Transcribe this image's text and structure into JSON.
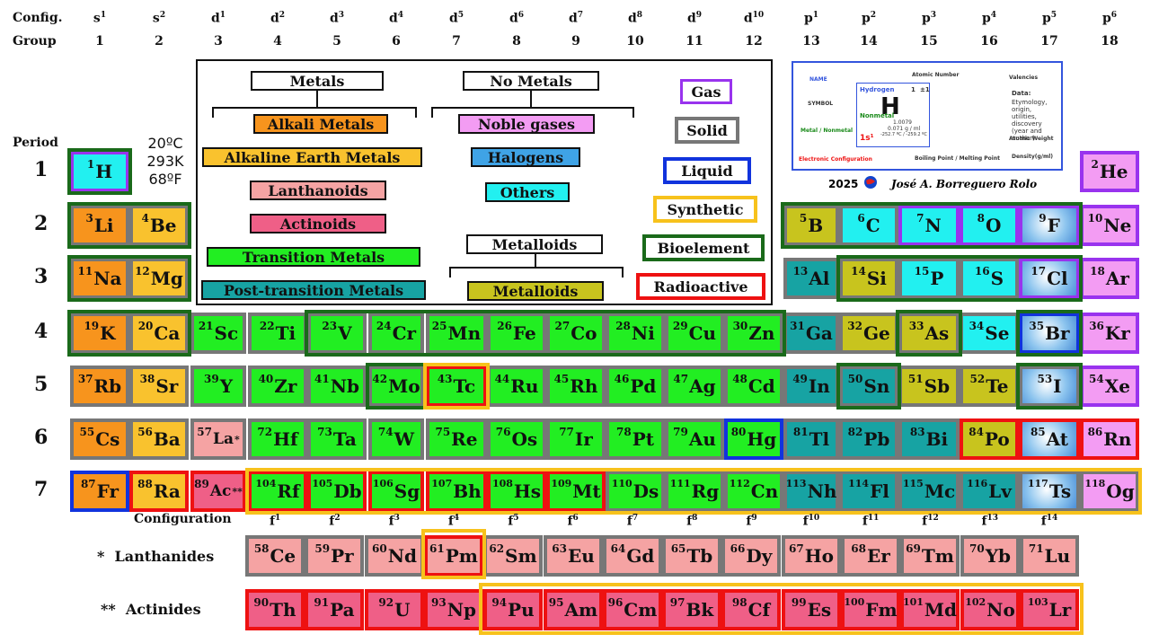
{
  "header": {
    "config_label": "Config.",
    "group_label": "Group",
    "columns": [
      {
        "config": "s",
        "sup": "1",
        "group": "1"
      },
      {
        "config": "s",
        "sup": "2",
        "group": "2"
      },
      {
        "config": "d",
        "sup": "1",
        "group": "3"
      },
      {
        "config": "d",
        "sup": "2",
        "group": "4"
      },
      {
        "config": "d",
        "sup": "3",
        "group": "5"
      },
      {
        "config": "d",
        "sup": "4",
        "group": "6"
      },
      {
        "config": "d",
        "sup": "5",
        "group": "7"
      },
      {
        "config": "d",
        "sup": "6",
        "group": "8"
      },
      {
        "config": "d",
        "sup": "7",
        "group": "9"
      },
      {
        "config": "d",
        "sup": "8",
        "group": "10"
      },
      {
        "config": "d",
        "sup": "9",
        "group": "11"
      },
      {
        "config": "d",
        "sup": "10",
        "group": "12"
      },
      {
        "config": "p",
        "sup": "1",
        "group": "13"
      },
      {
        "config": "p",
        "sup": "2",
        "group": "14"
      },
      {
        "config": "p",
        "sup": "3",
        "group": "15"
      },
      {
        "config": "p",
        "sup": "4",
        "group": "16"
      },
      {
        "config": "p",
        "sup": "5",
        "group": "17"
      },
      {
        "config": "p",
        "sup": "6",
        "group": "18"
      }
    ]
  },
  "period_label": "Period",
  "periods": [
    "1",
    "2",
    "3",
    "4",
    "5",
    "6",
    "7"
  ],
  "temperature": {
    "celsius": "20ºC",
    "kelvin": "293K",
    "fahrenheit": "68ºF"
  },
  "legend": {
    "metals_title": "Metals",
    "nonmetals_title": "No Metals",
    "metalloids_title": "Metalloids",
    "categories": {
      "alkali": "Alkali Metals",
      "earth": "Alkaline Earth Metals",
      "lanthanoids": "Lanthanoids",
      "actinoids": "Actinoids",
      "transition": "Transition Metals",
      "post": "Post-transition Metals",
      "noble": "Noble gases",
      "halogens": "Halogens",
      "others": "Others",
      "metalloids": "Metalloids"
    },
    "states": {
      "gas": "Gas",
      "solid": "Solid",
      "liquid": "Liquid",
      "synthetic": "Synthetic",
      "bioelement": "Bioelement",
      "radioactive": "Radioactive"
    },
    "colors": {
      "alkali": "#f7941d",
      "earth": "#f9c22e",
      "lanthanoids": "#f5a3a3",
      "actinoids": "#ef5f87",
      "transition": "#22ee22",
      "post": "#17a3a3",
      "noble": "#f39cf3",
      "halogens": "#4b8fd8",
      "others": "#22f0f0",
      "metalloids": "#c8c41e",
      "gas": "#9933ee",
      "solid": "#777777",
      "liquid": "#1133dd",
      "synthetic": "#f7c21c",
      "bioelement": "#1a6a1a",
      "radioactive": "#ee1111"
    }
  },
  "key_card": {
    "name_label": "NAME",
    "atomic_number_label": "Atomic Number",
    "valencies_label": "Valencies",
    "symbol_label": "SYMBOL",
    "element_name": "Hydrogen",
    "number": "1",
    "valency": "±1",
    "symbol": "H",
    "metal_label": "Metal / Nonmetal",
    "nonmetal": "Nonmetal",
    "data_label": "Data:",
    "data_text": "Etymology, origin, utilities, discovery (year and author)",
    "weight": "1.0079",
    "density": "0.071 g / ml",
    "temps": "-252.7 ºC / -259.2 ºC",
    "atomic_weight_label": "Atomic Weight",
    "config_value": "1s¹",
    "electronic_config_label": "Electronic Configuration",
    "bp_mp_label": "Boiling Point / Melting Point",
    "density_label": "Density(g/ml)"
  },
  "credit": {
    "year": "2025",
    "author": "José A. Borreguero Rolo"
  },
  "f_config_label": "Configuration",
  "f_headers": [
    {
      "config": "f",
      "sup": "1"
    },
    {
      "config": "f",
      "sup": "2"
    },
    {
      "config": "f",
      "sup": "3"
    },
    {
      "config": "f",
      "sup": "4"
    },
    {
      "config": "f",
      "sup": "5"
    },
    {
      "config": "f",
      "sup": "6"
    },
    {
      "config": "f",
      "sup": "7"
    },
    {
      "config": "f",
      "sup": "8"
    },
    {
      "config": "f",
      "sup": "9"
    },
    {
      "config": "f",
      "sup": "10"
    },
    {
      "config": "f",
      "sup": "11"
    },
    {
      "config": "f",
      "sup": "12"
    },
    {
      "config": "f",
      "sup": "13"
    },
    {
      "config": "f",
      "sup": "14"
    }
  ],
  "lanthanides_label": "*  Lanthanides",
  "actinides_label": "**  Actinides",
  "elements": [
    {
      "n": "1",
      "s": "H",
      "p": 1,
      "g": 1,
      "cat": "other",
      "state": "gas"
    },
    {
      "n": "2",
      "s": "He",
      "p": 1,
      "g": 18,
      "cat": "noble",
      "state": "gas"
    },
    {
      "n": "3",
      "s": "Li",
      "p": 2,
      "g": 1,
      "cat": "alkali",
      "state": "solid"
    },
    {
      "n": "4",
      "s": "Be",
      "p": 2,
      "g": 2,
      "cat": "earth",
      "state": "solid"
    },
    {
      "n": "5",
      "s": "B",
      "p": 2,
      "g": 13,
      "cat": "metalloid",
      "state": "solid"
    },
    {
      "n": "6",
      "s": "C",
      "p": 2,
      "g": 14,
      "cat": "other",
      "state": "solid"
    },
    {
      "n": "7",
      "s": "N",
      "p": 2,
      "g": 15,
      "cat": "other",
      "state": "gas"
    },
    {
      "n": "8",
      "s": "O",
      "p": 2,
      "g": 16,
      "cat": "other",
      "state": "gas"
    },
    {
      "n": "9",
      "s": "F",
      "p": 2,
      "g": 17,
      "cat": "halogen",
      "state": "gas"
    },
    {
      "n": "10",
      "s": "Ne",
      "p": 2,
      "g": 18,
      "cat": "noble",
      "state": "gas"
    },
    {
      "n": "11",
      "s": "Na",
      "p": 3,
      "g": 1,
      "cat": "alkali",
      "state": "solid"
    },
    {
      "n": "12",
      "s": "Mg",
      "p": 3,
      "g": 2,
      "cat": "earth",
      "state": "solid"
    },
    {
      "n": "13",
      "s": "Al",
      "p": 3,
      "g": 13,
      "cat": "post",
      "state": "solid"
    },
    {
      "n": "14",
      "s": "Si",
      "p": 3,
      "g": 14,
      "cat": "metalloid",
      "state": "solid"
    },
    {
      "n": "15",
      "s": "P",
      "p": 3,
      "g": 15,
      "cat": "other",
      "state": "solid"
    },
    {
      "n": "16",
      "s": "S",
      "p": 3,
      "g": 16,
      "cat": "other",
      "state": "solid"
    },
    {
      "n": "17",
      "s": "Cl",
      "p": 3,
      "g": 17,
      "cat": "halogen",
      "state": "gas"
    },
    {
      "n": "18",
      "s": "Ar",
      "p": 3,
      "g": 18,
      "cat": "noble",
      "state": "gas"
    },
    {
      "n": "19",
      "s": "K",
      "p": 4,
      "g": 1,
      "cat": "alkali",
      "state": "solid"
    },
    {
      "n": "20",
      "s": "Ca",
      "p": 4,
      "g": 2,
      "cat": "earth",
      "state": "solid"
    },
    {
      "n": "21",
      "s": "Sc",
      "p": 4,
      "g": 3,
      "cat": "trans",
      "state": "solid"
    },
    {
      "n": "22",
      "s": "Ti",
      "p": 4,
      "g": 4,
      "cat": "trans",
      "state": "solid"
    },
    {
      "n": "23",
      "s": "V",
      "p": 4,
      "g": 5,
      "cat": "trans",
      "state": "solid"
    },
    {
      "n": "24",
      "s": "Cr",
      "p": 4,
      "g": 6,
      "cat": "trans",
      "state": "solid"
    },
    {
      "n": "25",
      "s": "Mn",
      "p": 4,
      "g": 7,
      "cat": "trans",
      "state": "solid"
    },
    {
      "n": "26",
      "s": "Fe",
      "p": 4,
      "g": 8,
      "cat": "trans",
      "state": "solid"
    },
    {
      "n": "27",
      "s": "Co",
      "p": 4,
      "g": 9,
      "cat": "trans",
      "state": "solid"
    },
    {
      "n": "28",
      "s": "Ni",
      "p": 4,
      "g": 10,
      "cat": "trans",
      "state": "solid"
    },
    {
      "n": "29",
      "s": "Cu",
      "p": 4,
      "g": 11,
      "cat": "trans",
      "state": "solid"
    },
    {
      "n": "30",
      "s": "Zn",
      "p": 4,
      "g": 12,
      "cat": "trans",
      "state": "solid"
    },
    {
      "n": "31",
      "s": "Ga",
      "p": 4,
      "g": 13,
      "cat": "post",
      "state": "solid"
    },
    {
      "n": "32",
      "s": "Ge",
      "p": 4,
      "g": 14,
      "cat": "metalloid",
      "state": "solid"
    },
    {
      "n": "33",
      "s": "As",
      "p": 4,
      "g": 15,
      "cat": "metalloid",
      "state": "solid"
    },
    {
      "n": "34",
      "s": "Se",
      "p": 4,
      "g": 16,
      "cat": "other",
      "state": "solid"
    },
    {
      "n": "35",
      "s": "Br",
      "p": 4,
      "g": 17,
      "cat": "halogen",
      "state": "liquid"
    },
    {
      "n": "36",
      "s": "Kr",
      "p": 4,
      "g": 18,
      "cat": "noble",
      "state": "gas"
    },
    {
      "n": "37",
      "s": "Rb",
      "p": 5,
      "g": 1,
      "cat": "alkali",
      "state": "solid"
    },
    {
      "n": "38",
      "s": "Sr",
      "p": 5,
      "g": 2,
      "cat": "earth",
      "state": "solid"
    },
    {
      "n": "39",
      "s": "Y",
      "p": 5,
      "g": 3,
      "cat": "trans",
      "state": "solid"
    },
    {
      "n": "40",
      "s": "Zr",
      "p": 5,
      "g": 4,
      "cat": "trans",
      "state": "solid"
    },
    {
      "n": "41",
      "s": "Nb",
      "p": 5,
      "g": 5,
      "cat": "trans",
      "state": "solid"
    },
    {
      "n": "42",
      "s": "Mo",
      "p": 5,
      "g": 6,
      "cat": "trans",
      "state": "solid"
    },
    {
      "n": "43",
      "s": "Tc",
      "p": 5,
      "g": 7,
      "cat": "trans",
      "state": "radio"
    },
    {
      "n": "44",
      "s": "Ru",
      "p": 5,
      "g": 8,
      "cat": "trans",
      "state": "solid"
    },
    {
      "n": "45",
      "s": "Rh",
      "p": 5,
      "g": 9,
      "cat": "trans",
      "state": "solid"
    },
    {
      "n": "46",
      "s": "Pd",
      "p": 5,
      "g": 10,
      "cat": "trans",
      "state": "solid"
    },
    {
      "n": "47",
      "s": "Ag",
      "p": 5,
      "g": 11,
      "cat": "trans",
      "state": "solid"
    },
    {
      "n": "48",
      "s": "Cd",
      "p": 5,
      "g": 12,
      "cat": "trans",
      "state": "solid"
    },
    {
      "n": "49",
      "s": "In",
      "p": 5,
      "g": 13,
      "cat": "post",
      "state": "solid"
    },
    {
      "n": "50",
      "s": "Sn",
      "p": 5,
      "g": 14,
      "cat": "post",
      "state": "solid"
    },
    {
      "n": "51",
      "s": "Sb",
      "p": 5,
      "g": 15,
      "cat": "metalloid",
      "state": "solid"
    },
    {
      "n": "52",
      "s": "Te",
      "p": 5,
      "g": 16,
      "cat": "metalloid",
      "state": "solid"
    },
    {
      "n": "53",
      "s": "I",
      "p": 5,
      "g": 17,
      "cat": "halogen",
      "state": "solid"
    },
    {
      "n": "54",
      "s": "Xe",
      "p": 5,
      "g": 18,
      "cat": "noble",
      "state": "gas"
    },
    {
      "n": "55",
      "s": "Cs",
      "p": 6,
      "g": 1,
      "cat": "alkali",
      "state": "solid"
    },
    {
      "n": "56",
      "s": "Ba",
      "p": 6,
      "g": 2,
      "cat": "earth",
      "state": "solid"
    },
    {
      "n": "57",
      "s": "La",
      "p": 6,
      "g": 3,
      "cat": "lan",
      "state": "solid",
      "mark": "*"
    },
    {
      "n": "72",
      "s": "Hf",
      "p": 6,
      "g": 4,
      "cat": "trans",
      "state": "solid"
    },
    {
      "n": "73",
      "s": "Ta",
      "p": 6,
      "g": 5,
      "cat": "trans",
      "state": "solid"
    },
    {
      "n": "74",
      "s": "W",
      "p": 6,
      "g": 6,
      "cat": "trans",
      "state": "solid"
    },
    {
      "n": "75",
      "s": "Re",
      "p": 6,
      "g": 7,
      "cat": "trans",
      "state": "solid"
    },
    {
      "n": "76",
      "s": "Os",
      "p": 6,
      "g": 8,
      "cat": "trans",
      "state": "solid"
    },
    {
      "n": "77",
      "s": "Ir",
      "p": 6,
      "g": 9,
      "cat": "trans",
      "state": "solid"
    },
    {
      "n": "78",
      "s": "Pt",
      "p": 6,
      "g": 10,
      "cat": "trans",
      "state": "solid"
    },
    {
      "n": "79",
      "s": "Au",
      "p": 6,
      "g": 11,
      "cat": "trans",
      "state": "solid"
    },
    {
      "n": "80",
      "s": "Hg",
      "p": 6,
      "g": 12,
      "cat": "trans",
      "state": "liquid"
    },
    {
      "n": "81",
      "s": "Tl",
      "p": 6,
      "g": 13,
      "cat": "post",
      "state": "solid"
    },
    {
      "n": "82",
      "s": "Pb",
      "p": 6,
      "g": 14,
      "cat": "post",
      "state": "solid"
    },
    {
      "n": "83",
      "s": "Bi",
      "p": 6,
      "g": 15,
      "cat": "post",
      "state": "solid"
    },
    {
      "n": "84",
      "s": "Po",
      "p": 6,
      "g": 16,
      "cat": "metalloid",
      "state": "radio"
    },
    {
      "n": "85",
      "s": "At",
      "p": 6,
      "g": 17,
      "cat": "halogen",
      "state": "radio"
    },
    {
      "n": "86",
      "s": "Rn",
      "p": 6,
      "g": 18,
      "cat": "noble",
      "state": "radio"
    },
    {
      "n": "87",
      "s": "Fr",
      "p": 7,
      "g": 1,
      "cat": "alkali",
      "state": "liquid"
    },
    {
      "n": "88",
      "s": "Ra",
      "p": 7,
      "g": 2,
      "cat": "earth",
      "state": "radio"
    },
    {
      "n": "89",
      "s": "Ac",
      "p": 7,
      "g": 3,
      "cat": "act",
      "state": "radio",
      "mark": "**"
    },
    {
      "n": "104",
      "s": "Rf",
      "p": 7,
      "g": 4,
      "cat": "trans",
      "state": "radio"
    },
    {
      "n": "105",
      "s": "Db",
      "p": 7,
      "g": 5,
      "cat": "trans",
      "state": "radio"
    },
    {
      "n": "106",
      "s": "Sg",
      "p": 7,
      "g": 6,
      "cat": "trans",
      "state": "radio"
    },
    {
      "n": "107",
      "s": "Bh",
      "p": 7,
      "g": 7,
      "cat": "trans",
      "state": "radio"
    },
    {
      "n": "108",
      "s": "Hs",
      "p": 7,
      "g": 8,
      "cat": "trans",
      "state": "radio"
    },
    {
      "n": "109",
      "s": "Mt",
      "p": 7,
      "g": 9,
      "cat": "trans",
      "state": "radio"
    },
    {
      "n": "110",
      "s": "Ds",
      "p": 7,
      "g": 10,
      "cat": "trans",
      "state": "solid"
    },
    {
      "n": "111",
      "s": "Rg",
      "p": 7,
      "g": 11,
      "cat": "trans",
      "state": "solid"
    },
    {
      "n": "112",
      "s": "Cn",
      "p": 7,
      "g": 12,
      "cat": "trans",
      "state": "solid"
    },
    {
      "n": "113",
      "s": "Nh",
      "p": 7,
      "g": 13,
      "cat": "post",
      "state": "solid"
    },
    {
      "n": "114",
      "s": "Fl",
      "p": 7,
      "g": 14,
      "cat": "post",
      "state": "solid"
    },
    {
      "n": "115",
      "s": "Mc",
      "p": 7,
      "g": 15,
      "cat": "post",
      "state": "solid"
    },
    {
      "n": "116",
      "s": "Lv",
      "p": 7,
      "g": 16,
      "cat": "post",
      "state": "solid"
    },
    {
      "n": "117",
      "s": "Ts",
      "p": 7,
      "g": 17,
      "cat": "halogen",
      "state": "solid"
    },
    {
      "n": "118",
      "s": "Og",
      "p": 7,
      "g": 18,
      "cat": "noble",
      "state": "solid"
    }
  ],
  "lanthanides": [
    {
      "n": "58",
      "s": "Ce",
      "state": "solid"
    },
    {
      "n": "59",
      "s": "Pr",
      "state": "solid"
    },
    {
      "n": "60",
      "s": "Nd",
      "state": "solid"
    },
    {
      "n": "61",
      "s": "Pm",
      "state": "radio"
    },
    {
      "n": "62",
      "s": "Sm",
      "state": "solid"
    },
    {
      "n": "63",
      "s": "Eu",
      "state": "solid"
    },
    {
      "n": "64",
      "s": "Gd",
      "state": "solid"
    },
    {
      "n": "65",
      "s": "Tb",
      "state": "solid"
    },
    {
      "n": "66",
      "s": "Dy",
      "state": "solid"
    },
    {
      "n": "67",
      "s": "Ho",
      "state": "solid"
    },
    {
      "n": "68",
      "s": "Er",
      "state": "solid"
    },
    {
      "n": "69",
      "s": "Tm",
      "state": "solid"
    },
    {
      "n": "70",
      "s": "Yb",
      "state": "solid"
    },
    {
      "n": "71",
      "s": "Lu",
      "state": "solid"
    }
  ],
  "actinides": [
    {
      "n": "90",
      "s": "Th",
      "state": "radio"
    },
    {
      "n": "91",
      "s": "Pa",
      "state": "radio"
    },
    {
      "n": "92",
      "s": "U",
      "state": "radio"
    },
    {
      "n": "93",
      "s": "Np",
      "state": "radio"
    },
    {
      "n": "94",
      "s": "Pu",
      "state": "radio"
    },
    {
      "n": "95",
      "s": "Am",
      "state": "radio"
    },
    {
      "n": "96",
      "s": "Cm",
      "state": "radio"
    },
    {
      "n": "97",
      "s": "Bk",
      "state": "radio"
    },
    {
      "n": "98",
      "s": "Cf",
      "state": "radio"
    },
    {
      "n": "99",
      "s": "Es",
      "state": "radio"
    },
    {
      "n": "100",
      "s": "Fm",
      "state": "radio"
    },
    {
      "n": "101",
      "s": "Md",
      "state": "radio"
    },
    {
      "n": "102",
      "s": "No",
      "state": "radio"
    },
    {
      "n": "103",
      "s": "Lr",
      "state": "radio"
    }
  ]
}
